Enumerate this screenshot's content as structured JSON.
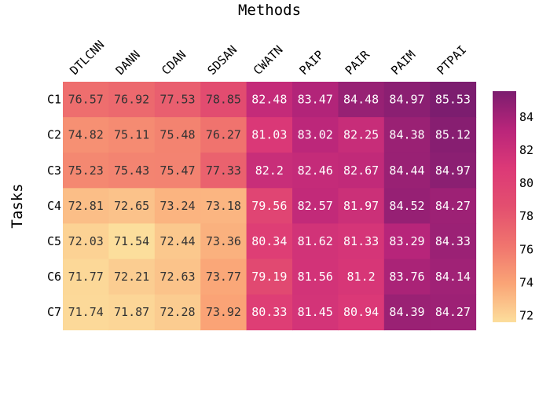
{
  "chart_data": {
    "type": "heatmap",
    "title": "Methods",
    "xlabel": "Methods",
    "ylabel": "Tasks",
    "x_categories": [
      "DTLCNN",
      "DANN",
      "CDAN",
      "SDSAN",
      "CWATN",
      "PAIP",
      "PAIR",
      "PAIM",
      "PTPAI"
    ],
    "y_categories": [
      "C1",
      "C2",
      "C3",
      "C4",
      "C5",
      "C6",
      "C7"
    ],
    "values": [
      [
        76.57,
        76.92,
        77.53,
        78.85,
        82.48,
        83.47,
        84.48,
        84.97,
        85.53
      ],
      [
        74.82,
        75.11,
        75.48,
        76.27,
        81.03,
        83.02,
        82.25,
        84.38,
        85.12
      ],
      [
        75.23,
        75.43,
        75.47,
        77.33,
        82.2,
        82.46,
        82.67,
        84.44,
        84.97
      ],
      [
        72.81,
        72.65,
        73.24,
        73.18,
        79.56,
        82.57,
        81.97,
        84.52,
        84.27
      ],
      [
        72.03,
        71.54,
        72.44,
        73.36,
        80.34,
        81.62,
        81.33,
        83.29,
        84.33
      ],
      [
        71.77,
        72.21,
        72.63,
        73.77,
        79.19,
        81.56,
        81.2,
        83.76,
        84.14
      ],
      [
        71.74,
        71.87,
        72.28,
        73.92,
        80.33,
        81.45,
        80.94,
        84.39,
        84.27
      ]
    ],
    "value_labels": [
      [
        "76.57",
        "76.92",
        "77.53",
        "78.85",
        "82.48",
        "83.47",
        "84.48",
        "84.97",
        "85.53"
      ],
      [
        "74.82",
        "75.11",
        "75.48",
        "76.27",
        "81.03",
        "83.02",
        "82.25",
        "84.38",
        "85.12"
      ],
      [
        "75.23",
        "75.43",
        "75.47",
        "77.33",
        "82.2",
        "82.46",
        "82.67",
        "84.44",
        "84.97"
      ],
      [
        "72.81",
        "72.65",
        "73.24",
        "73.18",
        "79.56",
        "82.57",
        "81.97",
        "84.52",
        "84.27"
      ],
      [
        "72.03",
        "71.54",
        "72.44",
        "73.36",
        "80.34",
        "81.62",
        "81.33",
        "83.29",
        "84.33"
      ],
      [
        "71.77",
        "72.21",
        "72.63",
        "73.77",
        "79.19",
        "81.56",
        "81.2",
        "83.76",
        "84.14"
      ],
      [
        "71.74",
        "71.87",
        "72.28",
        "73.92",
        "80.33",
        "81.45",
        "80.94",
        "84.39",
        "84.27"
      ]
    ],
    "color_range": [
      71.54,
      85.53
    ],
    "colorbar_ticks": [
      72,
      74,
      76,
      78,
      80,
      82,
      84
    ],
    "colorscale": [
      "#fcde9c",
      "#faa476",
      "#f0746e",
      "#e34f6f",
      "#dc3977",
      "#b9257a",
      "#7c1d6f"
    ],
    "text_color_dark": "#333333",
    "text_color_light": "#ffffff",
    "text_threshold": 79
  }
}
